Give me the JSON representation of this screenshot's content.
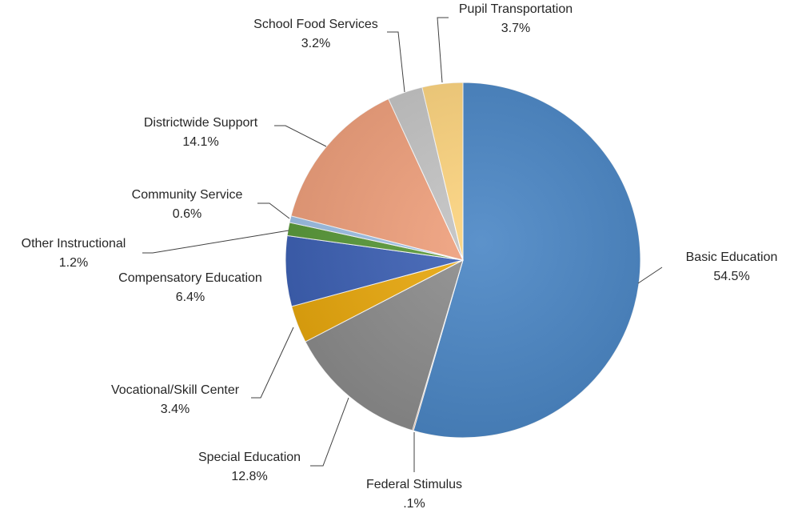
{
  "chart_data": {
    "type": "pie",
    "title": "",
    "slices": [
      {
        "name": "Basic Education",
        "value": 54.5,
        "label": "54.5%",
        "color": "#4a86c5"
      },
      {
        "name": "Federal Stimulus",
        "value": 0.1,
        "label": ".1%",
        "color": "#ed7d31"
      },
      {
        "name": "Special Education",
        "value": 12.8,
        "label": "12.8%",
        "color": "#8c8c8c"
      },
      {
        "name": "Vocational/Skill Center",
        "value": 3.4,
        "label": "3.4%",
        "color": "#eaa90d"
      },
      {
        "name": "Compensatory Education",
        "value": 6.4,
        "label": "6.4%",
        "color": "#3d61b5"
      },
      {
        "name": "Other Instructional",
        "value": 1.2,
        "label": "1.2%",
        "color": "#5a9a3a"
      },
      {
        "name": "Community Service",
        "value": 0.6,
        "label": "0.6%",
        "color": "#9fc2e8"
      },
      {
        "name": "Districtwide Support",
        "value": 14.1,
        "label": "14.1%",
        "color": "#f0a07c"
      },
      {
        "name": "School Food Services",
        "value": 3.2,
        "label": "3.2%",
        "color": "#c4c4c4"
      },
      {
        "name": "Pupil Transportation",
        "value": 3.7,
        "label": "3.7%",
        "color": "#fdd47e"
      }
    ],
    "legend": "none",
    "data_labels": "category name and percentage, outside with leader lines"
  }
}
